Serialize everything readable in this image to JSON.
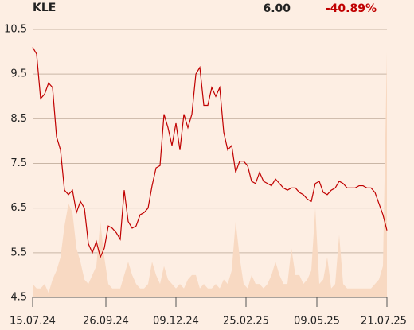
{
  "header": {
    "ticker": "KLE",
    "price": "6.00",
    "change": "-40.89%"
  },
  "chart_data": {
    "type": "line",
    "xlim": [
      0,
      89
    ],
    "xticks": [
      {
        "value": 0,
        "label": "15.07.24"
      },
      {
        "value": 18.4,
        "label": "26.09.24"
      },
      {
        "value": 36,
        "label": "09.12.24"
      },
      {
        "value": 53.6,
        "label": "25.02.25"
      },
      {
        "value": 71.4,
        "label": "09.05.25"
      },
      {
        "value": 89,
        "label": "21.07.25"
      }
    ],
    "ylim": [
      4.5,
      10.5
    ],
    "yticks": [
      4.5,
      5.5,
      6.5,
      7.5,
      8.5,
      9.5,
      10.5
    ],
    "grid": true,
    "series": [
      {
        "type": "area",
        "color": "#f8d9c2",
        "values": [
          4.8,
          4.7,
          4.7,
          4.8,
          4.6,
          4.9,
          5.1,
          5.4,
          6.1,
          6.6,
          6.4,
          5.6,
          5.3,
          4.9,
          4.8,
          5.0,
          5.2,
          6.2,
          5.4,
          4.8,
          4.7,
          4.7,
          4.7,
          5.0,
          5.3,
          5.0,
          4.8,
          4.7,
          4.7,
          4.8,
          5.3,
          5.0,
          4.8,
          5.2,
          4.9,
          4.8,
          4.7,
          4.8,
          4.7,
          4.9,
          5.0,
          5.0,
          4.7,
          4.8,
          4.7,
          4.7,
          4.8,
          4.7,
          4.9,
          4.8,
          5.1,
          6.2,
          5.4,
          4.8,
          4.7,
          5.0,
          4.8,
          4.8,
          4.7,
          4.8,
          5.0,
          5.3,
          5.0,
          4.8,
          4.8,
          5.6,
          5.0,
          5.0,
          4.8,
          4.9,
          5.1,
          6.5,
          4.8,
          4.9,
          5.4,
          4.7,
          4.8,
          5.9,
          4.8,
          4.7,
          4.7,
          4.7,
          4.7,
          4.7,
          4.7,
          4.7,
          4.8,
          4.9,
          5.2,
          10.0
        ]
      },
      {
        "type": "line",
        "color": "#c00000",
        "values": [
          10.1,
          9.95,
          8.95,
          9.05,
          9.3,
          9.2,
          8.1,
          7.8,
          6.9,
          6.8,
          6.9,
          6.4,
          6.65,
          6.5,
          5.7,
          5.5,
          5.75,
          5.4,
          5.6,
          6.1,
          6.05,
          5.95,
          5.8,
          6.9,
          6.2,
          6.05,
          6.1,
          6.35,
          6.4,
          6.5,
          7.0,
          7.4,
          7.45,
          8.6,
          8.3,
          7.9,
          8.4,
          7.8,
          8.6,
          8.3,
          8.6,
          9.5,
          9.65,
          8.8,
          8.8,
          9.2,
          9.0,
          9.2,
          8.2,
          7.8,
          7.9,
          7.3,
          7.55,
          7.55,
          7.45,
          7.1,
          7.05,
          7.3,
          7.1,
          7.05,
          7.0,
          7.15,
          7.05,
          6.95,
          6.9,
          6.95,
          6.95,
          6.85,
          6.8,
          6.7,
          6.65,
          7.05,
          7.1,
          6.85,
          6.8,
          6.9,
          6.95,
          7.1,
          7.05,
          6.95,
          6.95,
          6.95,
          7.0,
          7.0,
          6.95,
          6.95,
          6.85,
          6.6,
          6.35,
          6.0
        ]
      }
    ]
  }
}
